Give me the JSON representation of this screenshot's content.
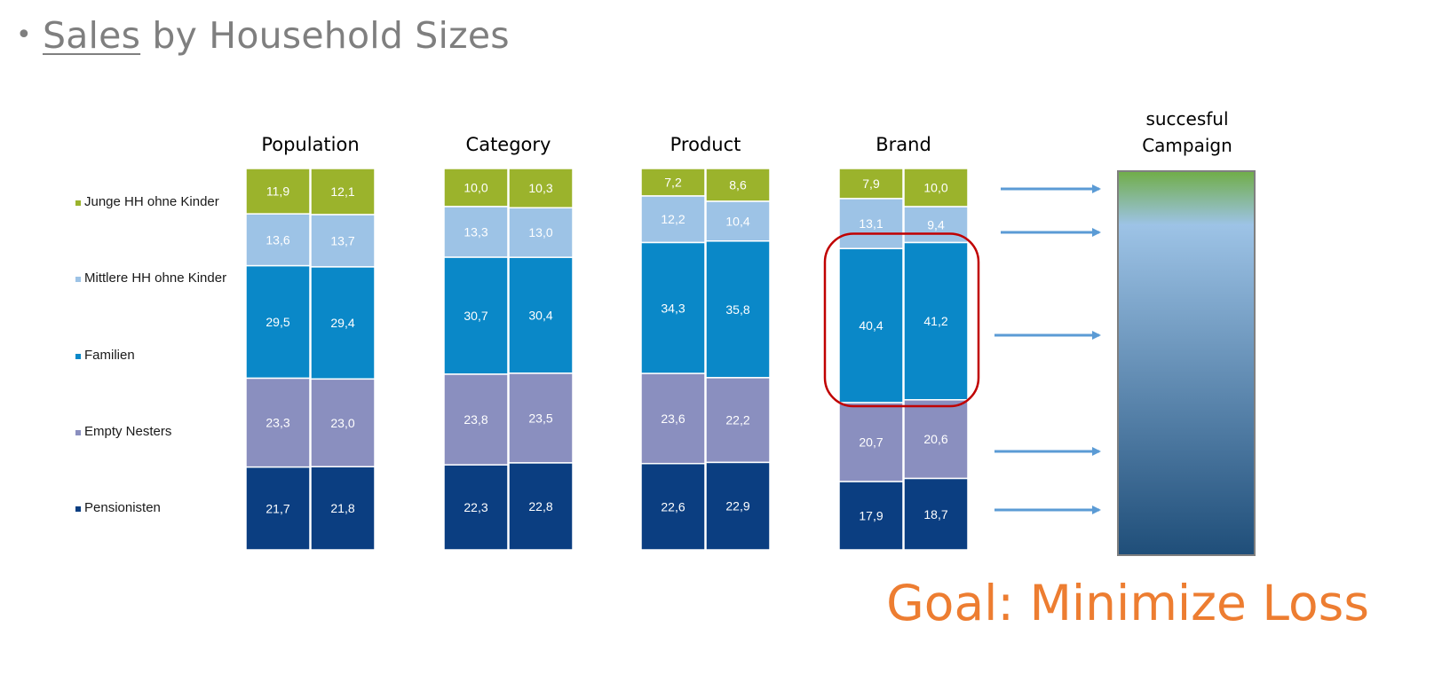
{
  "title": {
    "bullet": "•",
    "underlined": "Sales",
    "rest": " by Household Sizes"
  },
  "goal": "Goal: Minimize Loss",
  "campaign_label": [
    "succesful",
    "Campaign"
  ],
  "colors": {
    "junge": "#9bb32c",
    "mittlere": "#9dc3e6",
    "familien": "#0a88c8",
    "empty_nesters": "#8a8fbf",
    "pensionisten": "#0b3e81",
    "arrow": "#5b9bd5",
    "highlight": "#c00000",
    "goal": "#ed7d31",
    "campaign_top": "#70ad47",
    "campaign_mid": "#9dc3e6",
    "campaign_bottom": "#1f4e79"
  },
  "chart_data": {
    "type": "bar",
    "stacked": true,
    "normalized_percent": true,
    "legend_position": "left",
    "groups": [
      "Population",
      "Category",
      "Product",
      "Brand"
    ],
    "series": [
      {
        "name": "Junge HH ohne Kinder",
        "color_key": "junge",
        "values": [
          [
            11.9,
            12.1
          ],
          [
            10.0,
            10.3
          ],
          [
            7.2,
            8.6
          ],
          [
            7.9,
            10.0
          ]
        ],
        "labels": [
          [
            "11,9",
            "12,1"
          ],
          [
            "10,0",
            "10,3"
          ],
          [
            "7,2",
            "8,6"
          ],
          [
            "7,9",
            "10,0"
          ]
        ]
      },
      {
        "name": "Mittlere HH ohne Kinder",
        "color_key": "mittlere",
        "values": [
          [
            13.6,
            13.7
          ],
          [
            13.3,
            13.0
          ],
          [
            12.2,
            10.4
          ],
          [
            13.1,
            9.4
          ]
        ],
        "labels": [
          [
            "13,6",
            "13,7"
          ],
          [
            "13,3",
            "13,0"
          ],
          [
            "12,2",
            "10,4"
          ],
          [
            "13,1",
            "9,4"
          ]
        ]
      },
      {
        "name": "Familien",
        "color_key": "familien",
        "values": [
          [
            29.5,
            29.4
          ],
          [
            30.7,
            30.4
          ],
          [
            34.3,
            35.8
          ],
          [
            40.4,
            41.2
          ]
        ],
        "labels": [
          [
            "29,5",
            "29,4"
          ],
          [
            "30,7",
            "30,4"
          ],
          [
            "34,3",
            "35,8"
          ],
          [
            "40,4",
            "41,2"
          ]
        ]
      },
      {
        "name": "Empty Nesters",
        "color_key": "empty_nesters",
        "values": [
          [
            23.3,
            23.0
          ],
          [
            23.8,
            23.5
          ],
          [
            23.6,
            22.2
          ],
          [
            20.7,
            20.6
          ]
        ],
        "labels": [
          [
            "23,3",
            "23,0"
          ],
          [
            "23,8",
            "23,5"
          ],
          [
            "23,6",
            "22,2"
          ],
          [
            "20,7",
            "20,6"
          ]
        ]
      },
      {
        "name": "Pensionisten",
        "color_key": "pensionisten",
        "values": [
          [
            21.7,
            21.8
          ],
          [
            22.3,
            22.8
          ],
          [
            22.6,
            22.9
          ],
          [
            17.9,
            18.7
          ]
        ],
        "labels": [
          [
            "21,7",
            "21,8"
          ],
          [
            "22,3",
            "22,8"
          ],
          [
            "22,6",
            "22,9"
          ],
          [
            "17,9",
            "18,7"
          ]
        ]
      }
    ],
    "highlight": {
      "group": "Brand",
      "series": "Familien"
    }
  }
}
